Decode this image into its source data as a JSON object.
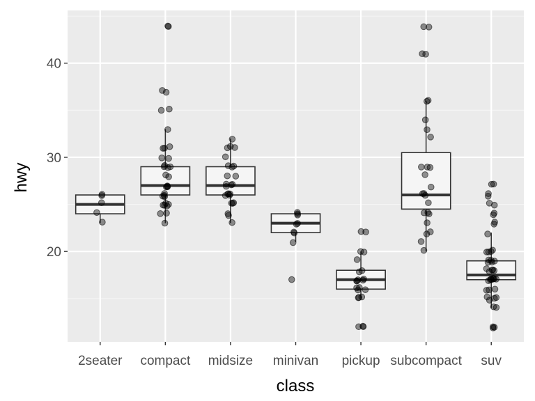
{
  "chart_data": {
    "type": "boxplot",
    "xlabel": "class",
    "ylabel": "hwy",
    "categories": [
      "2seater",
      "compact",
      "midsize",
      "minivan",
      "pickup",
      "subcompact",
      "suv"
    ],
    "ylim": [
      10.4,
      45.6
    ],
    "yticks": [
      20,
      30,
      40
    ],
    "grid": true,
    "boxes": [
      {
        "category": "2seater",
        "min": 23,
        "q1": 24,
        "median": 25,
        "q3": 26,
        "max": 26
      },
      {
        "category": "compact",
        "min": 23,
        "q1": 26,
        "median": 27,
        "q3": 29,
        "max": 33
      },
      {
        "category": "midsize",
        "min": 23,
        "q1": 26,
        "median": 27,
        "q3": 29,
        "max": 32
      },
      {
        "category": "minivan",
        "min": 21,
        "q1": 22,
        "median": 23,
        "q3": 24,
        "max": 24
      },
      {
        "category": "pickup",
        "min": 15,
        "q1": 16,
        "median": 17,
        "q3": 18,
        "max": 20
      },
      {
        "category": "subcompact",
        "min": 20,
        "q1": 24.5,
        "median": 26,
        "q3": 30.5,
        "max": 36
      },
      {
        "category": "suv",
        "min": 14,
        "q1": 17,
        "median": 17.5,
        "q3": 19,
        "max": 22
      }
    ],
    "points": {
      "2seater": [
        26,
        25,
        26,
        24,
        23
      ],
      "compact": [
        44,
        44,
        37,
        37,
        35,
        35,
        33,
        31,
        31,
        31,
        30,
        30,
        29,
        29,
        29,
        29,
        28,
        28,
        27,
        27,
        27,
        27,
        26,
        26,
        26,
        26,
        25,
        25,
        25,
        25,
        25,
        24,
        24,
        23
      ],
      "midsize": [
        32,
        31,
        31,
        31,
        30,
        29,
        29,
        29,
        28,
        28,
        27,
        27,
        27,
        27,
        26,
        26,
        26,
        26,
        26,
        25,
        25,
        25,
        24,
        24,
        23
      ],
      "minivan": [
        24,
        24,
        24,
        23,
        23,
        22,
        22,
        21,
        17
      ],
      "pickup": [
        22,
        22,
        20,
        20,
        19,
        18,
        18,
        17,
        17,
        17,
        17,
        17,
        16,
        16,
        16,
        16,
        15,
        15,
        15,
        12,
        12,
        12
      ],
      "subcompact": [
        44,
        44,
        41,
        41,
        36,
        36,
        34,
        33,
        32,
        29,
        29,
        29,
        28,
        27,
        26,
        26,
        26,
        25,
        24,
        24,
        24,
        23,
        22,
        22,
        21,
        20
      ],
      "suv": [
        27,
        27,
        26,
        26,
        25,
        25,
        24,
        24,
        23,
        23,
        22,
        20,
        20,
        20,
        20,
        19,
        19,
        19,
        19,
        19,
        18,
        18,
        18,
        18,
        18,
        17,
        17,
        17,
        17,
        17,
        17,
        17,
        17,
        16,
        16,
        16,
        15,
        15,
        15,
        15,
        14,
        14,
        12,
        12,
        12
      ]
    },
    "colors": {
      "panel": "#ebebeb",
      "grid_major": "#ffffff",
      "grid_minor": "#f5f5f5",
      "box_fill": "#f5f5f5",
      "box_stroke": "#333333",
      "point": "#000000"
    }
  }
}
